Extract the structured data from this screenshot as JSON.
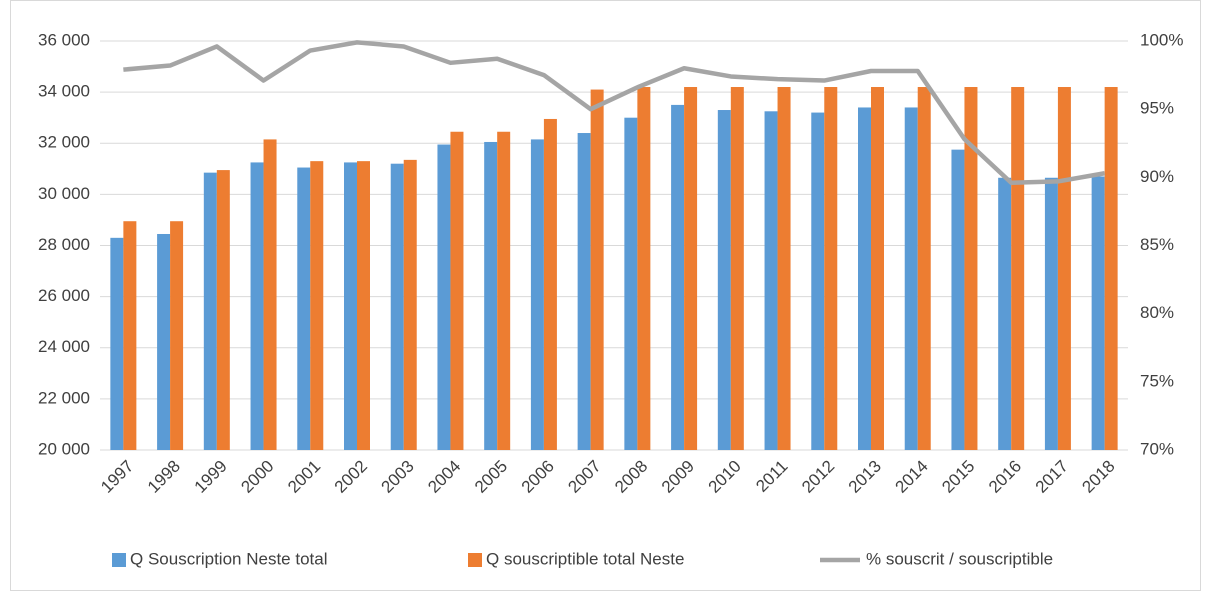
{
  "chart_data": {
    "type": "bar",
    "categories": [
      "1997",
      "1998",
      "1999",
      "2000",
      "2001",
      "2002",
      "2003",
      "2004",
      "2005",
      "2006",
      "2007",
      "2008",
      "2009",
      "2010",
      "2011",
      "2012",
      "2013",
      "2014",
      "2015",
      "2016",
      "2017",
      "2018"
    ],
    "series": [
      {
        "name": "Q Souscription Neste total",
        "color": "#5b9bd5",
        "type": "bar",
        "values": [
          28300,
          28450,
          30850,
          31250,
          31050,
          31250,
          31200,
          31950,
          32050,
          32150,
          32400,
          33000,
          33500,
          33300,
          33250,
          33200,
          33400,
          33400,
          31750,
          30650,
          30650,
          30700
        ]
      },
      {
        "name": "Q souscriptible total Neste",
        "color": "#ed7d31",
        "type": "bar",
        "values": [
          28950,
          28950,
          30950,
          32150,
          31300,
          31300,
          31350,
          32450,
          32450,
          32950,
          34100,
          34200,
          34200,
          34200,
          34200,
          34200,
          34200,
          34200,
          34200,
          34200,
          34200,
          34200
        ]
      },
      {
        "name": "% souscrit / souscriptible",
        "color": "#a5a5a5",
        "type": "line",
        "axis": "y2",
        "values": [
          97.9,
          98.2,
          99.6,
          97.1,
          99.3,
          99.9,
          99.6,
          98.4,
          98.7,
          97.5,
          95.0,
          96.6,
          98.0,
          97.4,
          97.2,
          97.1,
          97.8,
          97.8,
          92.8,
          89.6,
          89.7,
          90.3
        ]
      }
    ],
    "ylim": [
      20000,
      36000
    ],
    "yticks": [
      {
        "value": 20000,
        "label": "20 000"
      },
      {
        "value": 22000,
        "label": "22 000"
      },
      {
        "value": 24000,
        "label": "24 000"
      },
      {
        "value": 26000,
        "label": "26 000"
      },
      {
        "value": 28000,
        "label": "28 000"
      },
      {
        "value": 30000,
        "label": "30 000"
      },
      {
        "value": 32000,
        "label": "32 000"
      },
      {
        "value": 34000,
        "label": "34 000"
      },
      {
        "value": 36000,
        "label": "36 000"
      }
    ],
    "y2lim": [
      70,
      100
    ],
    "y2ticks": [
      {
        "value": 70,
        "label": "70%"
      },
      {
        "value": 75,
        "label": "75%"
      },
      {
        "value": 80,
        "label": "80%"
      },
      {
        "value": 85,
        "label": "85%"
      },
      {
        "value": 90,
        "label": "90%"
      },
      {
        "value": 95,
        "label": "95%"
      },
      {
        "value": 100,
        "label": "100%"
      }
    ],
    "grid": true,
    "legend": "bottom"
  }
}
